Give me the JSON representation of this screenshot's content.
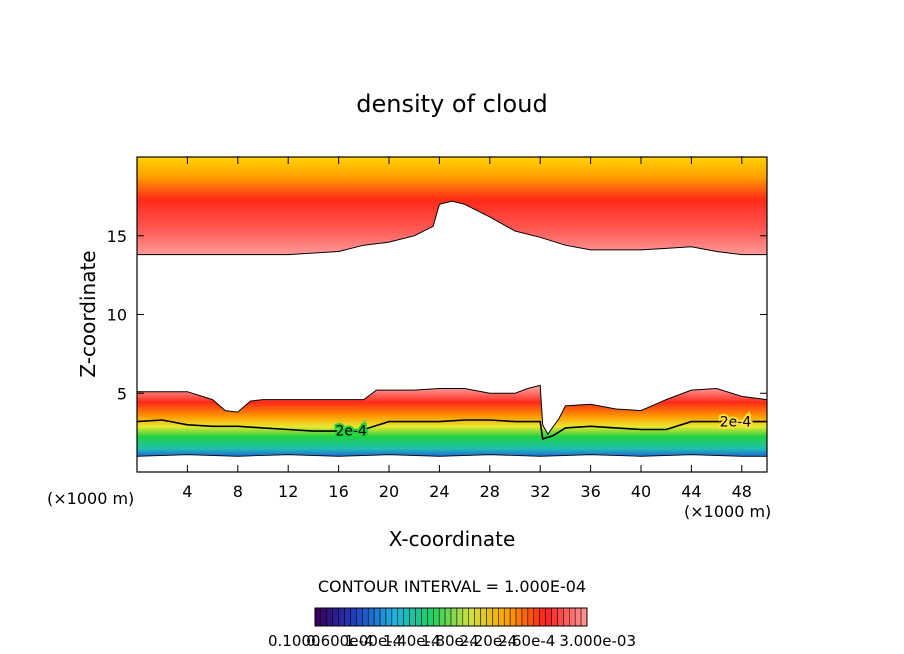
{
  "chart_data": {
    "type": "contour",
    "title": "density of cloud",
    "xlabel": "X-coordinate",
    "ylabel": "Z-coordinate",
    "x_unit_left": "(×1000 m)",
    "x_unit_right": "(×1000 m)",
    "xlim": [
      0,
      50
    ],
    "ylim": [
      0,
      20
    ],
    "x_ticks": [
      4,
      8,
      12,
      16,
      20,
      24,
      28,
      32,
      36,
      40,
      44,
      48
    ],
    "y_ticks": [
      5,
      10,
      15
    ],
    "contour_interval": "CONTOUR INTERVAL = 1.000E-04",
    "contour_label": "2e-4",
    "colorbar_labels": [
      "0.1000",
      "0.600e-4",
      "1.00e-4",
      "1.40e-4",
      "1.80e-4",
      "2.20e-4",
      "2.60e-4",
      "3.000e-03"
    ],
    "colorbar_colors": [
      "#3a0060",
      "#2040c0",
      "#20b0e0",
      "#20d060",
      "#d0e040",
      "#ffa000",
      "#ff2020",
      "#ff9090"
    ],
    "upper_cloud_base": {
      "x": [
        0,
        4,
        8,
        12,
        16,
        18,
        20,
        22,
        23.5,
        24,
        25,
        26,
        28,
        30,
        32,
        34,
        36,
        38,
        40,
        42,
        44,
        46,
        48,
        50
      ],
      "z": [
        13.8,
        13.8,
        13.8,
        13.8,
        14.0,
        14.4,
        14.6,
        15.0,
        15.6,
        17.0,
        17.2,
        17.0,
        16.2,
        15.3,
        14.9,
        14.4,
        14.1,
        14.1,
        14.1,
        14.2,
        14.3,
        14.0,
        13.8,
        13.8
      ]
    },
    "lower_cloud_top": {
      "x": [
        0,
        2,
        4,
        6,
        7,
        8,
        9,
        10,
        12,
        14,
        16,
        18,
        19,
        20,
        22,
        24,
        26,
        28,
        30,
        31,
        32,
        32.2,
        32.6,
        33.5,
        34,
        36,
        38,
        40,
        42,
        44,
        46,
        48,
        50
      ],
      "z": [
        5.1,
        5.1,
        5.1,
        4.6,
        3.9,
        3.8,
        4.5,
        4.6,
        4.6,
        4.6,
        4.6,
        4.6,
        5.2,
        5.2,
        5.2,
        5.3,
        5.3,
        5.0,
        5.0,
        5.3,
        5.5,
        3.0,
        2.4,
        3.4,
        4.2,
        4.3,
        4.0,
        3.9,
        4.6,
        5.2,
        5.3,
        4.8,
        4.6
      ]
    },
    "contour_2e4": {
      "x": [
        0,
        2,
        4,
        6,
        8,
        10,
        12,
        14,
        16,
        18,
        20,
        22,
        24,
        26,
        28,
        30,
        31,
        32,
        32.2,
        33,
        34,
        36,
        38,
        40,
        42,
        44,
        46,
        48,
        50
      ],
      "z": [
        3.2,
        3.3,
        3.0,
        2.9,
        2.9,
        2.8,
        2.7,
        2.6,
        2.6,
        2.7,
        3.2,
        3.2,
        3.2,
        3.3,
        3.3,
        3.2,
        3.2,
        3.2,
        2.1,
        2.3,
        2.8,
        2.9,
        2.8,
        2.7,
        2.7,
        3.2,
        3.2,
        3.2,
        3.2
      ]
    },
    "lower_cloud_base": {
      "x": [
        0,
        4,
        8,
        12,
        16,
        20,
        24,
        28,
        32,
        36,
        40,
        44,
        48,
        50
      ],
      "z": [
        1.0,
        1.1,
        1.0,
        1.1,
        1.0,
        1.1,
        1.0,
        1.1,
        1.0,
        1.1,
        1.0,
        1.1,
        1.0,
        1.0
      ]
    }
  }
}
